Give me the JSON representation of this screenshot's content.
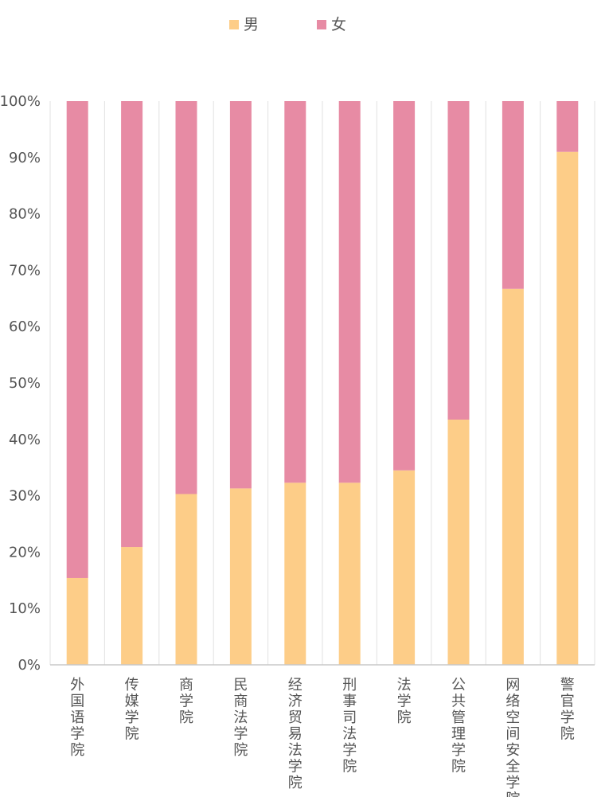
{
  "chart_data": {
    "type": "bar",
    "stacked": true,
    "percent": true,
    "categories": [
      "外国语学院",
      "传媒学院",
      "商学院",
      "民商法学院",
      "经济贸易法学院",
      "刑事司法学院",
      "法学院",
      "公共管理学院",
      "网络空间安全学院",
      "警官学院"
    ],
    "series": [
      {
        "name": "男",
        "color": "#FDCD88",
        "values": [
          15.4,
          20.9,
          30.3,
          31.3,
          32.3,
          32.3,
          34.5,
          43.5,
          66.7,
          91.0
        ]
      },
      {
        "name": "女",
        "color": "#E78BA4",
        "values": [
          84.6,
          79.1,
          69.7,
          68.7,
          67.7,
          67.7,
          65.5,
          56.5,
          33.3,
          9.0
        ]
      }
    ],
    "y_ticks": [
      "0%",
      "10%",
      "20%",
      "30%",
      "40%",
      "50%",
      "60%",
      "70%",
      "80%",
      "90%",
      "100%"
    ],
    "ylim": [
      0,
      100
    ],
    "grid": "vertical",
    "legend_position": "top-center",
    "title": "",
    "xlabel": "",
    "ylabel": ""
  }
}
